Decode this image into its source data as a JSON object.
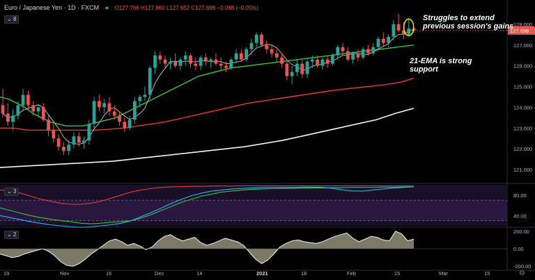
{
  "header": {
    "symbol": "Euro / Japanese Yen",
    "interval": "1D",
    "source": "FXCM",
    "open": "O127.766",
    "high": "H127.860",
    "low": "L127.652",
    "close": "C127.698",
    "change": "−0.068 (−0.05%)",
    "indicator_count": "8"
  },
  "rsi_pane": {
    "indicator_count": "3"
  },
  "cci_pane": {
    "indicator_count": "2"
  },
  "annotations": {
    "resistance_line1": "Struggles to extend",
    "resistance_line2": "previous session's gains",
    "support_line1": "21-EMA is strong",
    "support_line2": "support"
  },
  "price_tag": "127.698",
  "colors": {
    "background": "#000000",
    "up": "#26a69a",
    "down": "#ef5350",
    "ema_21": "#2ecc40",
    "ema_100": "#e53935",
    "ema_200": "#f5f5f5",
    "sma_fast": "#c8c8c8",
    "rsi_fill": "#1a0f28",
    "cci_fill": "#8a8672",
    "highlight_ellipse": "#f5e400"
  },
  "chart_data": [
    {
      "type": "candlestick",
      "title": "Euro / Japanese Yen, 1D, FXCM",
      "ylim": [
        120.4,
        128.9
      ],
      "y_ticks": [
        "128.000",
        "127.000",
        "126.000",
        "125.000",
        "124.000",
        "123.000",
        "122.000",
        "121.000"
      ],
      "x_ticks": [
        "19",
        "Nov",
        "16",
        "Dec",
        "14",
        "2021",
        "18",
        "Feb",
        "15",
        "Mar",
        "15"
      ],
      "candles": [
        {
          "o": 124.1,
          "h": 124.9,
          "l": 123.5,
          "c": 123.7
        },
        {
          "o": 123.7,
          "h": 124.2,
          "l": 123.1,
          "c": 123.3
        },
        {
          "o": 123.3,
          "h": 123.9,
          "l": 122.9,
          "c": 123.6
        },
        {
          "o": 123.6,
          "h": 124.3,
          "l": 123.4,
          "c": 124.1
        },
        {
          "o": 124.1,
          "h": 124.9,
          "l": 123.8,
          "c": 124.6
        },
        {
          "o": 124.6,
          "h": 124.8,
          "l": 123.9,
          "c": 124.1
        },
        {
          "o": 124.1,
          "h": 124.3,
          "l": 123.6,
          "c": 123.8
        },
        {
          "o": 123.8,
          "h": 124.1,
          "l": 123.5,
          "c": 124.0
        },
        {
          "o": 124.0,
          "h": 124.2,
          "l": 123.3,
          "c": 123.4
        },
        {
          "o": 123.4,
          "h": 123.6,
          "l": 122.6,
          "c": 122.9
        },
        {
          "o": 122.9,
          "h": 123.2,
          "l": 122.3,
          "c": 122.5
        },
        {
          "o": 122.5,
          "h": 122.7,
          "l": 121.9,
          "c": 122.1
        },
        {
          "o": 122.1,
          "h": 122.3,
          "l": 121.7,
          "c": 121.9
        },
        {
          "o": 121.9,
          "h": 122.4,
          "l": 121.7,
          "c": 122.2
        },
        {
          "o": 122.2,
          "h": 122.8,
          "l": 122.0,
          "c": 122.6
        },
        {
          "o": 122.6,
          "h": 122.8,
          "l": 122.1,
          "c": 122.3
        },
        {
          "o": 122.3,
          "h": 122.6,
          "l": 122.0,
          "c": 122.4
        },
        {
          "o": 122.4,
          "h": 123.4,
          "l": 122.2,
          "c": 123.2
        },
        {
          "o": 123.2,
          "h": 124.5,
          "l": 123.0,
          "c": 124.3
        },
        {
          "o": 124.3,
          "h": 124.6,
          "l": 123.8,
          "c": 124.0
        },
        {
          "o": 124.0,
          "h": 124.4,
          "l": 123.7,
          "c": 124.2
        },
        {
          "o": 124.2,
          "h": 124.5,
          "l": 123.6,
          "c": 123.8
        },
        {
          "o": 123.8,
          "h": 124.1,
          "l": 123.4,
          "c": 123.6
        },
        {
          "o": 123.6,
          "h": 123.8,
          "l": 123.1,
          "c": 123.3
        },
        {
          "o": 123.3,
          "h": 123.5,
          "l": 122.8,
          "c": 123.0
        },
        {
          "o": 123.0,
          "h": 123.6,
          "l": 122.9,
          "c": 123.4
        },
        {
          "o": 123.4,
          "h": 124.5,
          "l": 123.2,
          "c": 124.3
        },
        {
          "o": 124.3,
          "h": 124.6,
          "l": 124.0,
          "c": 124.5
        },
        {
          "o": 124.5,
          "h": 125.0,
          "l": 124.3,
          "c": 124.6
        },
        {
          "o": 124.6,
          "h": 126.0,
          "l": 124.4,
          "c": 125.9
        },
        {
          "o": 125.9,
          "h": 126.7,
          "l": 125.6,
          "c": 126.5
        },
        {
          "o": 126.5,
          "h": 126.7,
          "l": 126.1,
          "c": 126.3
        },
        {
          "o": 126.3,
          "h": 126.5,
          "l": 125.9,
          "c": 126.1
        },
        {
          "o": 126.1,
          "h": 126.4,
          "l": 125.8,
          "c": 126.2
        },
        {
          "o": 126.2,
          "h": 126.6,
          "l": 125.9,
          "c": 126.0
        },
        {
          "o": 126.0,
          "h": 126.4,
          "l": 125.8,
          "c": 126.3
        },
        {
          "o": 126.3,
          "h": 126.7,
          "l": 126.0,
          "c": 126.5
        },
        {
          "o": 126.5,
          "h": 126.6,
          "l": 125.9,
          "c": 126.1
        },
        {
          "o": 126.1,
          "h": 126.4,
          "l": 125.8,
          "c": 126.0
        },
        {
          "o": 126.0,
          "h": 126.5,
          "l": 125.8,
          "c": 126.4
        },
        {
          "o": 126.4,
          "h": 126.6,
          "l": 126.0,
          "c": 126.2
        },
        {
          "o": 126.2,
          "h": 126.4,
          "l": 125.9,
          "c": 126.3
        },
        {
          "o": 126.3,
          "h": 126.6,
          "l": 126.0,
          "c": 126.1
        },
        {
          "o": 126.1,
          "h": 126.4,
          "l": 125.8,
          "c": 126.0
        },
        {
          "o": 126.0,
          "h": 126.2,
          "l": 125.7,
          "c": 125.9
        },
        {
          "o": 125.9,
          "h": 126.4,
          "l": 125.8,
          "c": 126.3
        },
        {
          "o": 126.3,
          "h": 126.8,
          "l": 126.1,
          "c": 126.6
        },
        {
          "o": 126.6,
          "h": 126.8,
          "l": 126.2,
          "c": 126.3
        },
        {
          "o": 126.3,
          "h": 126.9,
          "l": 126.2,
          "c": 126.8
        },
        {
          "o": 126.8,
          "h": 127.3,
          "l": 126.5,
          "c": 127.1
        },
        {
          "o": 127.1,
          "h": 127.6,
          "l": 126.9,
          "c": 127.5
        },
        {
          "o": 127.5,
          "h": 127.6,
          "l": 126.9,
          "c": 127.0
        },
        {
          "o": 127.0,
          "h": 127.2,
          "l": 126.6,
          "c": 126.8
        },
        {
          "o": 126.8,
          "h": 127.0,
          "l": 126.4,
          "c": 126.6
        },
        {
          "o": 126.6,
          "h": 126.8,
          "l": 126.2,
          "c": 126.4
        },
        {
          "o": 126.4,
          "h": 126.6,
          "l": 125.9,
          "c": 126.1
        },
        {
          "o": 126.1,
          "h": 126.3,
          "l": 125.3,
          "c": 125.5
        },
        {
          "o": 125.5,
          "h": 126.0,
          "l": 125.1,
          "c": 125.7
        },
        {
          "o": 125.7,
          "h": 126.3,
          "l": 125.5,
          "c": 126.1
        },
        {
          "o": 126.1,
          "h": 126.3,
          "l": 125.4,
          "c": 125.6
        },
        {
          "o": 125.6,
          "h": 126.3,
          "l": 125.4,
          "c": 126.2
        },
        {
          "o": 126.2,
          "h": 126.5,
          "l": 125.9,
          "c": 126.3
        },
        {
          "o": 126.3,
          "h": 126.5,
          "l": 125.9,
          "c": 126.0
        },
        {
          "o": 126.0,
          "h": 126.4,
          "l": 125.8,
          "c": 126.3
        },
        {
          "o": 126.3,
          "h": 126.5,
          "l": 125.9,
          "c": 126.1
        },
        {
          "o": 126.1,
          "h": 126.6,
          "l": 126.0,
          "c": 126.5
        },
        {
          "o": 126.5,
          "h": 127.0,
          "l": 126.3,
          "c": 126.9
        },
        {
          "o": 126.9,
          "h": 127.1,
          "l": 126.5,
          "c": 126.7
        },
        {
          "o": 126.7,
          "h": 126.9,
          "l": 126.2,
          "c": 126.3
        },
        {
          "o": 126.3,
          "h": 126.7,
          "l": 126.1,
          "c": 126.6
        },
        {
          "o": 126.6,
          "h": 126.8,
          "l": 126.2,
          "c": 126.4
        },
        {
          "o": 126.4,
          "h": 126.9,
          "l": 126.3,
          "c": 126.8
        },
        {
          "o": 126.8,
          "h": 127.0,
          "l": 126.5,
          "c": 126.6
        },
        {
          "o": 126.6,
          "h": 127.1,
          "l": 126.5,
          "c": 126.9
        },
        {
          "o": 126.9,
          "h": 127.4,
          "l": 126.7,
          "c": 127.3
        },
        {
          "o": 127.3,
          "h": 127.6,
          "l": 126.9,
          "c": 127.1
        },
        {
          "o": 127.1,
          "h": 127.5,
          "l": 126.9,
          "c": 127.4
        },
        {
          "o": 127.4,
          "h": 128.2,
          "l": 127.2,
          "c": 128.0
        },
        {
          "o": 128.0,
          "h": 128.5,
          "l": 127.6,
          "c": 127.7
        },
        {
          "o": 127.7,
          "h": 128.1,
          "l": 127.3,
          "c": 127.5
        },
        {
          "o": 127.5,
          "h": 128.3,
          "l": 127.4,
          "c": 127.8
        },
        {
          "o": 127.8,
          "h": 127.9,
          "l": 127.6,
          "c": 127.7
        }
      ],
      "ema_21": [
        124.5,
        124.4,
        124.2,
        124.0,
        123.7,
        123.5,
        123.3,
        123.2,
        123.1,
        123.1,
        123.1,
        123.2,
        123.3,
        123.4,
        123.5,
        123.7,
        123.9,
        124.1,
        124.3,
        124.5,
        124.7,
        124.9,
        125.1,
        125.3,
        125.5,
        125.6,
        125.7,
        125.8,
        125.9,
        125.95,
        126.0,
        126.05,
        126.1,
        126.15,
        126.2,
        126.25,
        126.3,
        126.35,
        126.4,
        126.45,
        126.5,
        126.55,
        126.6,
        126.65,
        126.7,
        126.75,
        126.8,
        126.85,
        126.9,
        126.95,
        127.0
      ],
      "ema_100": [
        123.0,
        123.0,
        122.9,
        122.9,
        122.9,
        122.9,
        122.9,
        122.9,
        122.95,
        123.0,
        123.1,
        123.2,
        123.3,
        123.45,
        123.6,
        123.75,
        123.9,
        124.05,
        124.2,
        124.3,
        124.4,
        124.5,
        124.6,
        124.7,
        124.8,
        124.88,
        124.95,
        125.02,
        125.1,
        125.2,
        125.4
      ],
      "ema_200": [
        121.1,
        121.15,
        121.2,
        121.25,
        121.3,
        121.35,
        121.4,
        121.5,
        121.6,
        121.7,
        121.8,
        121.9,
        122.0,
        122.1,
        122.25,
        122.4,
        122.6,
        122.8,
        123.0,
        123.2,
        123.4,
        123.7,
        123.95
      ]
    },
    {
      "type": "line",
      "title": "",
      "ylim": [
        20,
        100
      ],
      "y_ticks": [
        "80.00",
        "40.00"
      ],
      "dashed_levels": [
        70,
        30
      ],
      "series": [
        {
          "values": [
            55,
            50,
            45,
            40,
            36,
            33,
            30,
            28,
            25,
            24,
            25,
            27,
            28,
            30,
            35,
            42,
            50,
            58,
            66,
            72,
            78,
            82,
            86,
            88,
            90,
            91,
            92,
            92.5,
            93,
            93,
            93.5,
            94,
            94,
            94.5,
            94.5,
            95,
            95,
            95,
            95.5,
            95.5,
            96,
            96
          ]
        },
        {
          "values": [
            40,
            36,
            32,
            28,
            25,
            22,
            20,
            18,
            17,
            18,
            20,
            22,
            25,
            30,
            38,
            46,
            55,
            64,
            72,
            79,
            84,
            88,
            90,
            92,
            93,
            94,
            94.5,
            95,
            95,
            95,
            95.5,
            95.5,
            95,
            93,
            90,
            88,
            88,
            90,
            92,
            94,
            95,
            96
          ]
        },
        {
          "values": [
            90,
            88,
            84,
            78,
            72,
            68,
            64,
            62,
            62,
            64,
            68,
            74,
            80,
            86,
            90,
            93,
            95,
            96,
            96.5,
            97,
            97,
            97.5,
            97.5,
            97.5,
            98,
            98,
            98,
            98,
            98,
            98,
            98,
            98,
            98,
            98,
            98,
            98,
            98,
            98,
            98,
            98,
            98,
            98
          ]
        }
      ]
    },
    {
      "type": "area",
      "title": "",
      "ylim": [
        -230,
        230
      ],
      "y_ticks": [
        "200.00",
        "0.00",
        "-200.00"
      ],
      "values": [
        -60,
        -80,
        -100,
        -90,
        -60,
        -40,
        -20,
        0,
        -30,
        -80,
        -150,
        -190,
        -200,
        -170,
        -120,
        -60,
        -10,
        40,
        90,
        110,
        80,
        40,
        60,
        30,
        -10,
        20,
        90,
        140,
        160,
        120,
        90,
        110,
        130,
        70,
        40,
        60,
        90,
        120,
        100,
        80,
        40,
        -40,
        -120,
        -170,
        -130,
        -60,
        20,
        60,
        90,
        100,
        80,
        70,
        60,
        80,
        110,
        140,
        160,
        180,
        120,
        80,
        110,
        140,
        130,
        100,
        90,
        200,
        170,
        90,
        110
      ]
    }
  ]
}
